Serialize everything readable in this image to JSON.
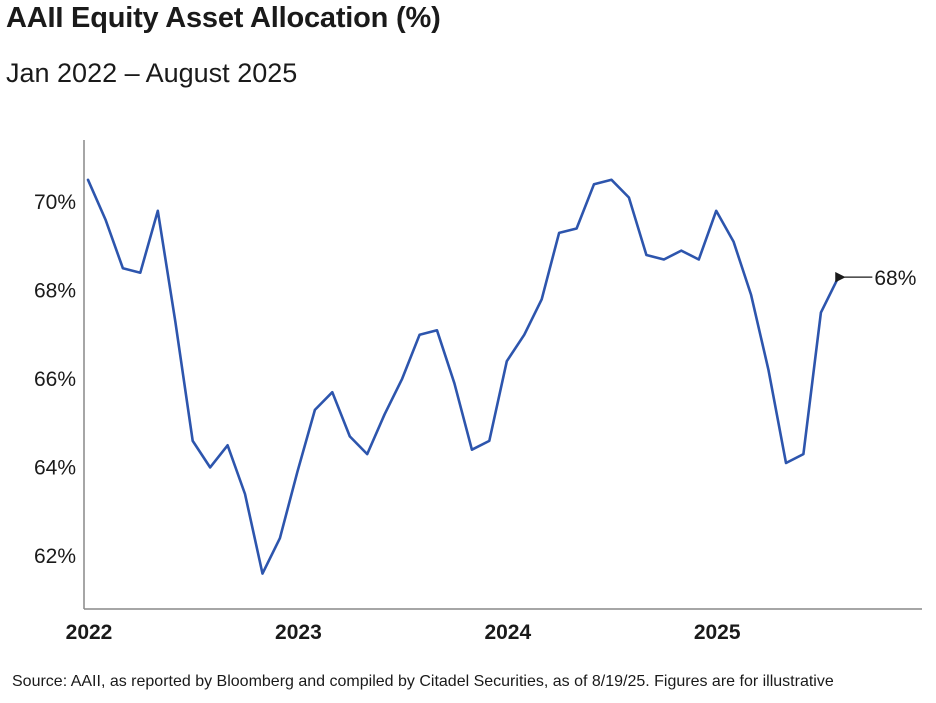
{
  "header": {
    "title": "AAII Equity Asset Allocation (%)",
    "subtitle": "Jan 2022 – August 2025"
  },
  "footer": {
    "source": "Source: AAII, as reported by Bloomberg and compiled by Citadel Securities, as of 8/19/25. Figures are for illustrative"
  },
  "colors": {
    "line": "#2d55ad",
    "axis": "#888888",
    "text": "#1a1a1a"
  },
  "chart_data": {
    "type": "line",
    "title": "AAII Equity Asset Allocation (%)",
    "subtitle": "Jan 2022 – August 2025",
    "xlabel": "",
    "ylabel": "",
    "x_ticks": [
      "2022",
      "2023",
      "2024",
      "2025"
    ],
    "y_ticks": [
      "62%",
      "64%",
      "66%",
      "68%",
      "70%"
    ],
    "ylim": [
      60.8,
      71.4
    ],
    "grid": false,
    "series": [
      {
        "x": [
          "2022-01",
          "2022-02",
          "2022-03",
          "2022-04",
          "2022-05",
          "2022-06",
          "2022-07",
          "2022-08",
          "2022-09",
          "2022-10",
          "2022-11",
          "2022-12",
          "2023-01",
          "2023-02",
          "2023-03",
          "2023-04",
          "2023-05",
          "2023-06",
          "2023-07",
          "2023-08",
          "2023-09",
          "2023-10",
          "2023-11",
          "2023-12",
          "2024-01",
          "2024-02",
          "2024-03",
          "2024-04",
          "2024-05",
          "2024-06",
          "2024-07",
          "2024-08",
          "2024-09",
          "2024-10",
          "2024-11",
          "2024-12",
          "2025-01",
          "2025-02",
          "2025-03",
          "2025-04",
          "2025-05",
          "2025-06",
          "2025-07",
          "2025-08"
        ],
        "values": [
          70.5,
          69.6,
          68.5,
          68.4,
          69.8,
          67.3,
          64.6,
          64.0,
          64.5,
          63.4,
          61.6,
          62.4,
          63.9,
          65.3,
          65.7,
          64.7,
          64.3,
          65.2,
          66.0,
          67.0,
          67.1,
          65.9,
          64.4,
          64.6,
          66.4,
          67.0,
          67.8,
          69.3,
          69.4,
          70.4,
          70.5,
          70.1,
          68.8,
          68.7,
          68.9,
          68.7,
          69.8,
          69.1,
          67.9,
          66.2,
          64.1,
          64.3,
          67.5,
          68.3
        ]
      }
    ],
    "annotations": [
      {
        "label": "68%",
        "x": "2025-08",
        "y": 68.3
      }
    ]
  }
}
